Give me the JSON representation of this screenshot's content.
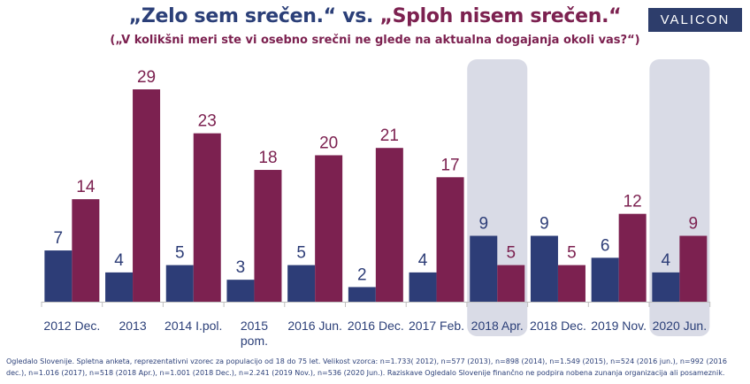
{
  "title": {
    "part1": "„Zelo sem srečen.“",
    "vs": " vs. ",
    "part2": "„Sploh nisem srečen.“"
  },
  "subtitle": "(„V kolikšni meri ste vi osebno srečni ne glede na aktualna dogajanja okoli vas?“)",
  "logo_text": "VALICON",
  "footnote": "Ogledalo Slovenije. Spletna anketa, reprezentativni vzorec za populacijo od 18 do 75 let. Velikost vzorca: n=1.733( 2012), n=577 (2013), n=898 (2014), n=1.549 (2015), n=524 (2016 jun.), n=992 (2016 dec.), n=1.016 (2017), n=518 (2018 Apr.), n=1.001 (2018 Dec.), n=2.241 (2019 Nov.), n=536 (2020 Jun.). Raziskave Ogledalo Slovenije finančno ne podpira nobena zunanja organizacija ali posameznik.",
  "colors": {
    "series1": "#2d3d77",
    "series2": "#7c2150",
    "highlight": "#d9dbe6",
    "title_blue": "#2b3f78",
    "title_red": "#7c2150"
  },
  "chart_data": {
    "type": "bar",
    "categories": [
      "2012 Dec.",
      "2013",
      "2014 I.pol.",
      "2015 pom.",
      "2016 Jun.",
      "2016 Dec.",
      "2017 Feb.",
      "2018 Apr.",
      "2018 Dec.",
      "2019 Nov.",
      "2020 Jun."
    ],
    "category_lines": [
      [
        "2012 Dec."
      ],
      [
        "2013"
      ],
      [
        "2014 I.pol."
      ],
      [
        "2015",
        "pom."
      ],
      [
        "2016 Jun."
      ],
      [
        "2016 Dec."
      ],
      [
        "2017 Feb."
      ],
      [
        "2018 Apr."
      ],
      [
        "2018 Dec."
      ],
      [
        "2019 Nov."
      ],
      [
        "2020 Jun."
      ]
    ],
    "highlighted": [
      "2018 Apr.",
      "2020 Jun."
    ],
    "series": [
      {
        "values": [
          7,
          4,
          5,
          3,
          5,
          2,
          4,
          9,
          9,
          6,
          4
        ]
      },
      {
        "values": [
          14,
          29,
          23,
          18,
          20,
          21,
          17,
          5,
          5,
          12,
          9
        ]
      }
    ],
    "ylim": [
      0,
      29
    ],
    "grid": false,
    "legend": "none"
  }
}
